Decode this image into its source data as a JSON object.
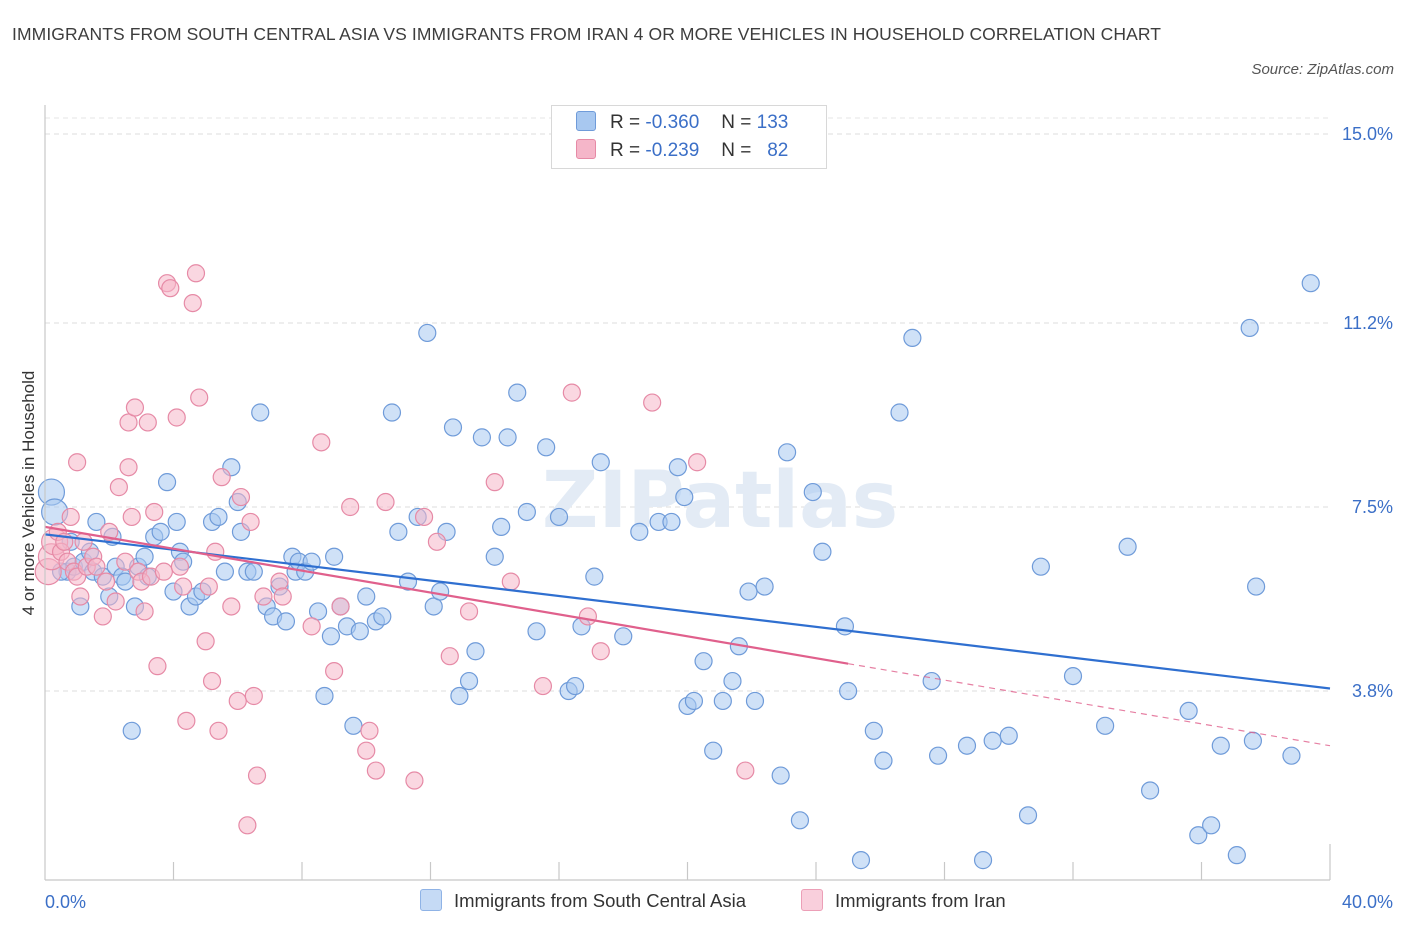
{
  "title": "IMMIGRANTS FROM SOUTH CENTRAL ASIA VS IMMIGRANTS FROM IRAN 4 OR MORE VEHICLES IN HOUSEHOLD CORRELATION CHART",
  "source": "Source: ZipAtlas.com",
  "watermark": "ZIPatlas",
  "legend": {
    "r_label": "R =",
    "n_label": "N =",
    "rows": [
      {
        "r": "-0.360",
        "n": "133"
      },
      {
        "r": "-0.239",
        "n": "82"
      }
    ]
  },
  "chart_data": {
    "type": "scatter",
    "xlabel": "",
    "ylabel": "4 or more Vehicles in Household",
    "xlim": [
      0,
      40
    ],
    "ylim": [
      0,
      15
    ],
    "x_tick_labels": [
      "0.0%",
      "40.0%"
    ],
    "y_ticks": [
      3.8,
      7.5,
      11.2,
      15.0
    ],
    "y_tick_labels": [
      "3.8%",
      "7.5%",
      "11.2%",
      "15.0%"
    ],
    "grid": "horizontal dashed",
    "legend_position": "top-center",
    "colors": {
      "blue_fill": "#a8c8f0",
      "blue_stroke": "#6f9bd9",
      "blue_line": "#2f6fd0",
      "pink_fill": "#f5b6c9",
      "pink_stroke": "#e68aa6",
      "pink_line": "#e0608c",
      "tick_text": "#3b6fc7"
    },
    "series": [
      {
        "name": "Immigrants from South Central Asia",
        "color": "#a8c8f0",
        "trend": {
          "x0": 0,
          "y0": 6.95,
          "x1": 40,
          "y1": 3.85
        },
        "points": [
          [
            0.2,
            7.8
          ],
          [
            0.3,
            7.4
          ],
          [
            0.7,
            6.2
          ],
          [
            0.8,
            6.8
          ],
          [
            0.9,
            6.3
          ],
          [
            1.1,
            5.5
          ],
          [
            1.2,
            6.4
          ],
          [
            1.4,
            6.6
          ],
          [
            1.5,
            6.2
          ],
          [
            1.6,
            7.2
          ],
          [
            1.8,
            6.1
          ],
          [
            2.0,
            5.7
          ],
          [
            2.1,
            6.9
          ],
          [
            2.2,
            6.3
          ],
          [
            2.4,
            6.1
          ],
          [
            2.5,
            6.0
          ],
          [
            2.7,
            3.0
          ],
          [
            2.8,
            5.5
          ],
          [
            2.9,
            6.3
          ],
          [
            3.1,
            6.5
          ],
          [
            3.2,
            6.1
          ],
          [
            3.4,
            6.9
          ],
          [
            3.6,
            7.0
          ],
          [
            3.8,
            8.0
          ],
          [
            4.0,
            5.8
          ],
          [
            4.1,
            7.2
          ],
          [
            4.2,
            6.6
          ],
          [
            4.3,
            6.4
          ],
          [
            4.5,
            5.5
          ],
          [
            4.7,
            5.7
          ],
          [
            4.9,
            5.8
          ],
          [
            5.2,
            7.2
          ],
          [
            5.4,
            7.3
          ],
          [
            5.6,
            6.2
          ],
          [
            5.8,
            8.3
          ],
          [
            6.0,
            7.6
          ],
          [
            6.1,
            7.0
          ],
          [
            6.3,
            6.2
          ],
          [
            6.5,
            6.2
          ],
          [
            6.7,
            9.4
          ],
          [
            6.9,
            5.5
          ],
          [
            7.1,
            5.3
          ],
          [
            7.3,
            5.9
          ],
          [
            7.5,
            5.2
          ],
          [
            7.7,
            6.5
          ],
          [
            7.8,
            6.2
          ],
          [
            7.9,
            6.4
          ],
          [
            8.1,
            6.2
          ],
          [
            8.3,
            6.4
          ],
          [
            8.5,
            5.4
          ],
          [
            8.7,
            3.7
          ],
          [
            8.9,
            4.9
          ],
          [
            9.0,
            6.5
          ],
          [
            9.2,
            5.5
          ],
          [
            9.4,
            5.1
          ],
          [
            9.6,
            3.1
          ],
          [
            9.8,
            5.0
          ],
          [
            10.0,
            5.7
          ],
          [
            10.3,
            5.2
          ],
          [
            10.5,
            5.3
          ],
          [
            10.8,
            9.4
          ],
          [
            11.0,
            7.0
          ],
          [
            11.3,
            6.0
          ],
          [
            11.6,
            7.3
          ],
          [
            11.9,
            11.0
          ],
          [
            12.1,
            5.5
          ],
          [
            12.3,
            5.8
          ],
          [
            12.5,
            7.0
          ],
          [
            12.7,
            9.1
          ],
          [
            12.9,
            3.7
          ],
          [
            13.2,
            4.0
          ],
          [
            13.4,
            4.6
          ],
          [
            13.6,
            8.9
          ],
          [
            14.0,
            6.5
          ],
          [
            14.2,
            7.1
          ],
          [
            14.4,
            8.9
          ],
          [
            14.7,
            9.8
          ],
          [
            15.0,
            7.4
          ],
          [
            15.3,
            5.0
          ],
          [
            15.6,
            8.7
          ],
          [
            16.0,
            7.3
          ],
          [
            16.3,
            3.8
          ],
          [
            16.5,
            3.9
          ],
          [
            16.7,
            5.1
          ],
          [
            17.1,
            6.1
          ],
          [
            17.3,
            8.4
          ],
          [
            18.0,
            4.9
          ],
          [
            18.5,
            7.0
          ],
          [
            19.1,
            7.2
          ],
          [
            19.5,
            7.2
          ],
          [
            19.7,
            8.3
          ],
          [
            19.9,
            7.7
          ],
          [
            20.0,
            3.5
          ],
          [
            20.2,
            3.6
          ],
          [
            20.5,
            4.4
          ],
          [
            20.8,
            2.6
          ],
          [
            21.1,
            3.6
          ],
          [
            21.4,
            4.0
          ],
          [
            21.6,
            4.7
          ],
          [
            21.9,
            5.8
          ],
          [
            22.1,
            3.6
          ],
          [
            22.4,
            5.9
          ],
          [
            22.9,
            2.1
          ],
          [
            23.1,
            8.6
          ],
          [
            23.5,
            1.2
          ],
          [
            23.9,
            7.8
          ],
          [
            24.2,
            6.6
          ],
          [
            24.9,
            5.1
          ],
          [
            25.0,
            3.8
          ],
          [
            25.4,
            0.4
          ],
          [
            25.8,
            3.0
          ],
          [
            26.1,
            2.4
          ],
          [
            26.6,
            9.4
          ],
          [
            27.0,
            10.9
          ],
          [
            27.6,
            4.0
          ],
          [
            27.8,
            2.5
          ],
          [
            28.7,
            2.7
          ],
          [
            29.2,
            0.4
          ],
          [
            29.5,
            2.8
          ],
          [
            30.0,
            2.9
          ],
          [
            30.6,
            1.3
          ],
          [
            31.0,
            6.3
          ],
          [
            32.0,
            4.1
          ],
          [
            33.0,
            3.1
          ],
          [
            33.7,
            6.7
          ],
          [
            34.4,
            1.8
          ],
          [
            35.6,
            3.4
          ],
          [
            35.9,
            0.9
          ],
          [
            36.3,
            1.1
          ],
          [
            36.6,
            2.7
          ],
          [
            37.1,
            0.5
          ],
          [
            37.5,
            11.1
          ],
          [
            37.6,
            2.8
          ],
          [
            37.7,
            5.9
          ],
          [
            38.8,
            2.5
          ],
          [
            39.4,
            12.0
          ],
          [
            0.5,
            6.2
          ]
        ]
      },
      {
        "name": "Immigrants from Iran",
        "color": "#f5b6c9",
        "trend": {
          "x0": 0,
          "y0": 7.1,
          "x1": 25.0,
          "y1": 4.35
        },
        "trend_dashed": {
          "x0": 25.0,
          "y0": 4.35,
          "x1": 40,
          "y1": 2.7
        },
        "points": [
          [
            0.1,
            6.2
          ],
          [
            0.2,
            6.5
          ],
          [
            0.3,
            6.8
          ],
          [
            0.4,
            7.0
          ],
          [
            0.5,
            6.6
          ],
          [
            0.6,
            6.8
          ],
          [
            0.7,
            6.4
          ],
          [
            0.8,
            7.3
          ],
          [
            0.9,
            6.2
          ],
          [
            1.0,
            6.1
          ],
          [
            1.0,
            8.4
          ],
          [
            1.1,
            5.7
          ],
          [
            1.2,
            6.8
          ],
          [
            1.3,
            6.3
          ],
          [
            1.5,
            6.5
          ],
          [
            1.6,
            6.3
          ],
          [
            1.8,
            5.3
          ],
          [
            1.9,
            6.0
          ],
          [
            2.0,
            7.0
          ],
          [
            2.2,
            5.6
          ],
          [
            2.3,
            7.9
          ],
          [
            2.5,
            6.4
          ],
          [
            2.6,
            9.2
          ],
          [
            2.6,
            8.3
          ],
          [
            2.7,
            7.3
          ],
          [
            2.8,
            9.5
          ],
          [
            2.9,
            6.2
          ],
          [
            3.0,
            6.0
          ],
          [
            3.1,
            5.4
          ],
          [
            3.2,
            9.2
          ],
          [
            3.3,
            6.1
          ],
          [
            3.4,
            7.4
          ],
          [
            3.5,
            4.3
          ],
          [
            3.7,
            6.2
          ],
          [
            3.8,
            12.0
          ],
          [
            3.9,
            11.9
          ],
          [
            4.1,
            9.3
          ],
          [
            4.2,
            6.3
          ],
          [
            4.3,
            5.9
          ],
          [
            4.4,
            3.2
          ],
          [
            4.6,
            11.6
          ],
          [
            4.7,
            12.2
          ],
          [
            4.8,
            9.7
          ],
          [
            5.0,
            4.8
          ],
          [
            5.1,
            5.9
          ],
          [
            5.2,
            4.0
          ],
          [
            5.3,
            6.6
          ],
          [
            5.4,
            3.0
          ],
          [
            5.5,
            8.1
          ],
          [
            5.8,
            5.5
          ],
          [
            6.0,
            3.6
          ],
          [
            6.1,
            7.7
          ],
          [
            6.3,
            1.1
          ],
          [
            6.4,
            7.2
          ],
          [
            6.5,
            3.7
          ],
          [
            6.6,
            2.1
          ],
          [
            6.8,
            5.7
          ],
          [
            7.3,
            6.0
          ],
          [
            7.4,
            5.7
          ],
          [
            8.3,
            5.1
          ],
          [
            8.6,
            8.8
          ],
          [
            9.0,
            4.2
          ],
          [
            9.2,
            5.5
          ],
          [
            9.5,
            7.5
          ],
          [
            10.0,
            2.6
          ],
          [
            10.1,
            3.0
          ],
          [
            10.3,
            2.2
          ],
          [
            10.6,
            7.6
          ],
          [
            11.5,
            2.0
          ],
          [
            11.8,
            7.3
          ],
          [
            12.2,
            6.8
          ],
          [
            12.6,
            4.5
          ],
          [
            13.2,
            5.4
          ],
          [
            14.0,
            8.0
          ],
          [
            14.5,
            6.0
          ],
          [
            15.5,
            3.9
          ],
          [
            16.4,
            9.8
          ],
          [
            16.9,
            5.3
          ],
          [
            17.3,
            4.6
          ],
          [
            18.9,
            9.6
          ],
          [
            20.3,
            8.4
          ],
          [
            21.8,
            2.2
          ]
        ]
      }
    ]
  },
  "bottom_legend": [
    {
      "label": "Immigrants from South Central Asia"
    },
    {
      "label": "Immigrants from Iran"
    }
  ]
}
